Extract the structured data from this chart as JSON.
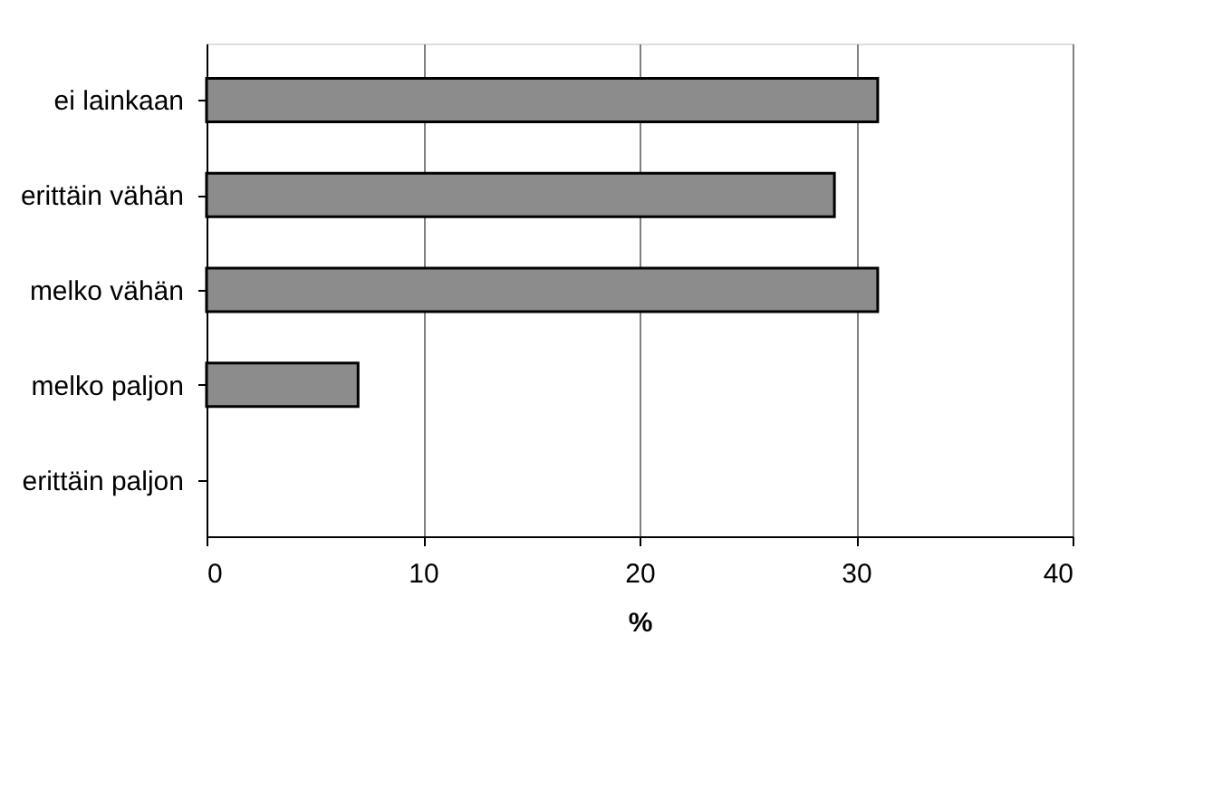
{
  "chart_data": {
    "type": "bar",
    "orientation": "horizontal",
    "xlabel": "%",
    "categories": [
      "ei lainkaan",
      "erittäin vähän",
      "melko vähän",
      "melko paljon",
      "erittäin paljon"
    ],
    "values": [
      31,
      29,
      31,
      7,
      0
    ],
    "color": "#8c8c8c",
    "xlim": [
      0,
      40
    ],
    "xticks": [
      0,
      10,
      20,
      30,
      40
    ],
    "grid": "x"
  }
}
